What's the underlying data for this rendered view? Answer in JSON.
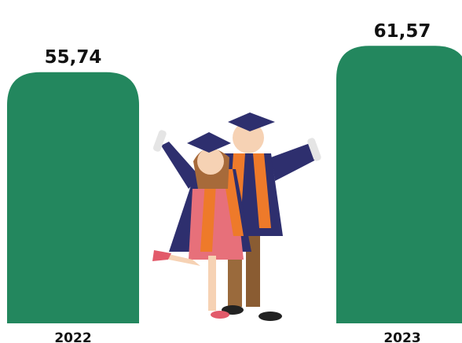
{
  "chart_data": {
    "type": "bar",
    "categories": [
      "2022",
      "2023"
    ],
    "values": [
      55.74,
      61.57
    ],
    "value_labels": [
      "55,74",
      "61,57"
    ],
    "color": "#23875e",
    "ylim": [
      0,
      70
    ],
    "yticks": [
      0,
      10,
      20,
      30,
      40,
      50,
      60,
      70
    ],
    "grid": true
  }
}
